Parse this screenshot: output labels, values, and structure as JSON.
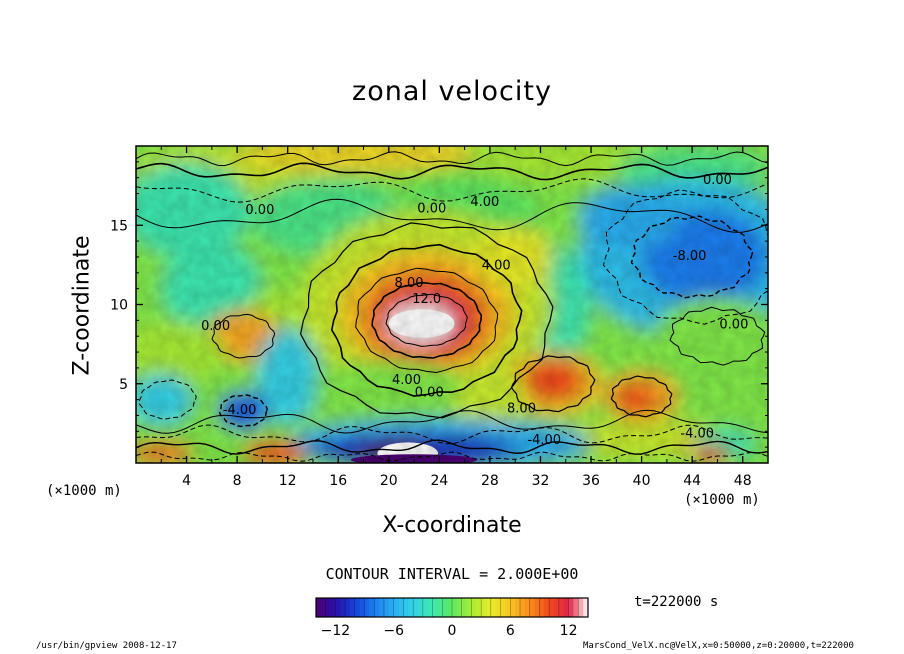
{
  "chart_data": {
    "type": "heatmap",
    "title": "zonal velocity",
    "xlabel": "X-coordinate",
    "ylabel": "Z-coordinate",
    "x_unit": "(×1000 m)",
    "y_unit": "(×1000 m)",
    "xlim": [
      0,
      50
    ],
    "ylim": [
      0,
      20
    ],
    "x_ticks": [
      4,
      8,
      12,
      16,
      20,
      24,
      28,
      32,
      36,
      40,
      44,
      48
    ],
    "y_ticks": [
      5,
      10,
      15
    ],
    "contour_interval_label": "CONTOUR INTERVAL = 2.000E+00",
    "time_label": "t=222000 s",
    "colorbar": {
      "ticks": [
        -12,
        -6,
        0,
        6,
        12
      ],
      "range": [
        -14,
        14
      ]
    },
    "contour_labels": [
      {
        "text": "0.00",
        "x": 46.0,
        "z": 17.6
      },
      {
        "text": "4.00",
        "x": 27.6,
        "z": 16.2
      },
      {
        "text": "0.00",
        "x": 23.4,
        "z": 15.8
      },
      {
        "text": "0.00",
        "x": 9.8,
        "z": 15.7
      },
      {
        "text": "-8.00",
        "x": 43.8,
        "z": 12.8
      },
      {
        "text": "4.00",
        "x": 28.5,
        "z": 12.2
      },
      {
        "text": "8.00",
        "x": 21.6,
        "z": 11.1
      },
      {
        "text": "12.0",
        "x": 23.0,
        "z": 10.1
      },
      {
        "text": "0.00",
        "x": 6.3,
        "z": 8.4
      },
      {
        "text": "0.00",
        "x": 47.3,
        "z": 8.5
      },
      {
        "text": "4.00",
        "x": 21.4,
        "z": 5.0
      },
      {
        "text": "0.00",
        "x": 23.2,
        "z": 4.2
      },
      {
        "text": "8.00",
        "x": 30.5,
        "z": 3.2
      },
      {
        "text": "-4.00",
        "x": 8.2,
        "z": 3.1
      },
      {
        "text": "-4.00",
        "x": 32.3,
        "z": 1.2
      },
      {
        "text": "-4.00",
        "x": 44.4,
        "z": 1.6
      }
    ],
    "features": [
      {
        "kind": "max",
        "x": 22.5,
        "z": 8.8,
        "value": 14
      },
      {
        "kind": "min",
        "x": 44.0,
        "z": 13.0,
        "value": -9
      },
      {
        "kind": "min",
        "x": 24.0,
        "z": 0.5,
        "value": -14
      }
    ]
  },
  "footer": {
    "left": "/usr/bin/gpview  2008-12-17",
    "right": "MarsCond_VelX.nc@VelX,x=0:50000,z=0:20000,t=222000"
  }
}
